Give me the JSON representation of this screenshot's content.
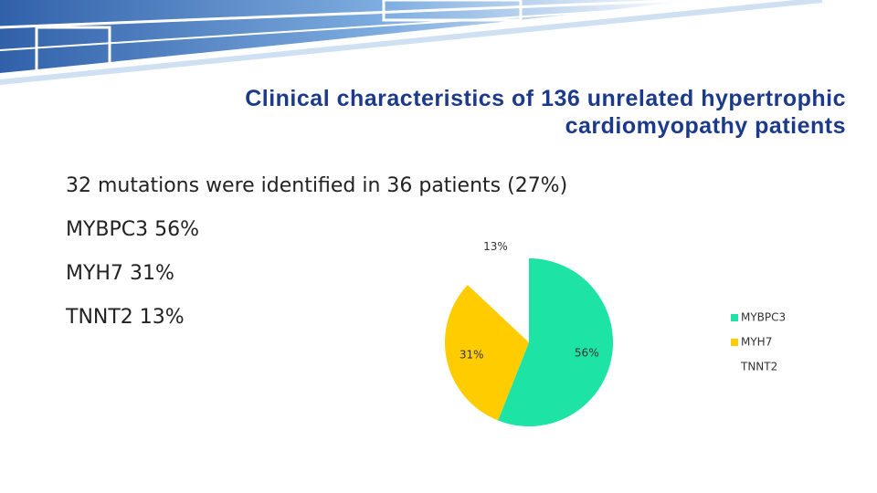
{
  "slide": {
    "title": [
      "Clinical characteristics of 136 unrelated hypertrophic",
      "cardiomyopathy  patients"
    ],
    "bullets": [
      "32 mutations were identified in 36 patients (27%)",
      "MYBPC3 56%",
      "MYH7 31%",
      "TNNT2 13%"
    ]
  },
  "chart_data": {
    "type": "pie",
    "categories": [
      "MYBPC3",
      "MYH7",
      "TNNT2"
    ],
    "values": [
      56,
      31,
      13
    ],
    "value_labels": [
      "56%",
      "31%",
      "13%"
    ],
    "colors": [
      "#1de3a4",
      "#ffcc00",
      "#ffffff"
    ],
    "legend": "right"
  }
}
